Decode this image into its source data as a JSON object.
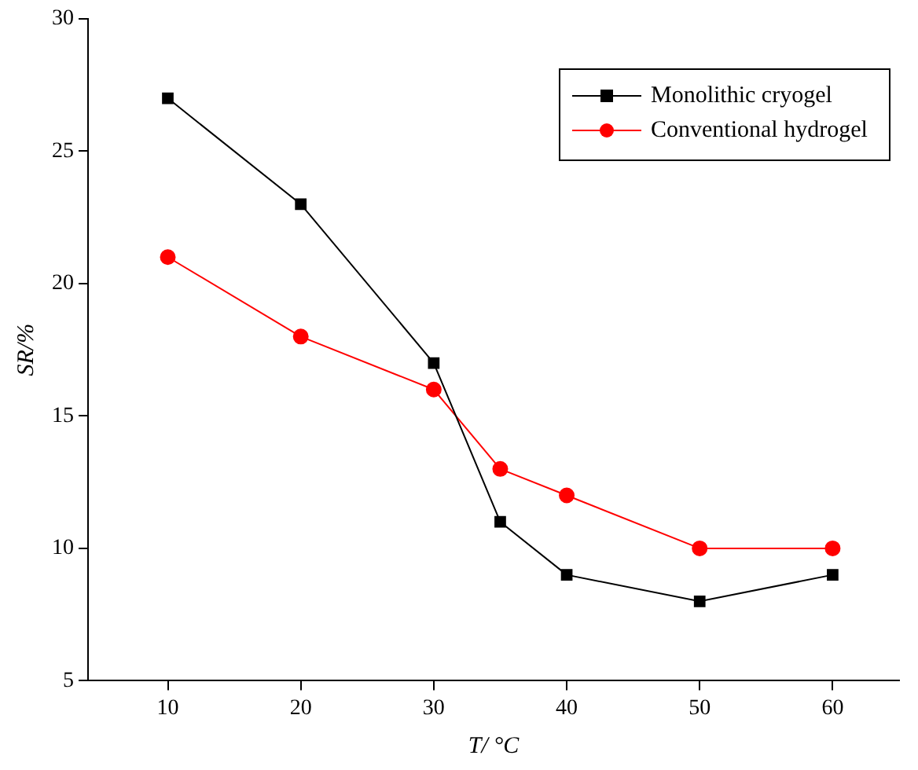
{
  "chart_data": {
    "type": "line",
    "xlabel": "T/ °C",
    "ylabel": "SR/%",
    "xlim": [
      4,
      65
    ],
    "xticks": [
      10,
      20,
      30,
      40,
      50,
      60
    ],
    "ylim": [
      5,
      30
    ],
    "yticks": [
      5,
      10,
      15,
      20,
      25,
      30
    ],
    "x": [
      10,
      20,
      30,
      35,
      40,
      50,
      60
    ],
    "series": [
      {
        "name": "Monolithic cryogel",
        "color": "#000000",
        "marker": "square",
        "values": [
          27,
          23,
          17,
          11,
          9,
          8,
          9
        ]
      },
      {
        "name": "Conventional hydrogel",
        "color": "#ff0000",
        "marker": "circle",
        "values": [
          21,
          18,
          16,
          13,
          12,
          10,
          10
        ]
      }
    ],
    "grid": false,
    "legend": "top right",
    "line_style": "solid"
  }
}
